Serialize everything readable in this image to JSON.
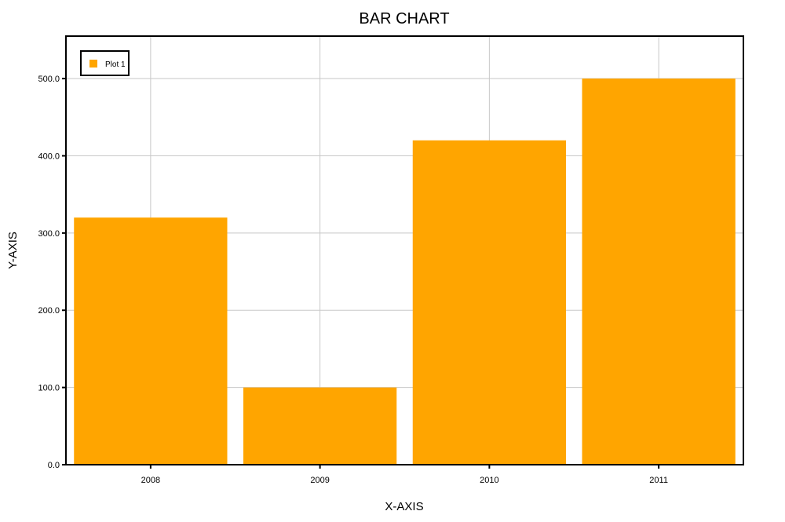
{
  "chart_data": {
    "type": "bar",
    "title": "BAR CHART",
    "xlabel": "X-AXIS",
    "ylabel": "Y-AXIS",
    "categories": [
      "2008",
      "2009",
      "2010",
      "2011"
    ],
    "series": [
      {
        "name": "Plot 1",
        "values": [
          320,
          100,
          420,
          500
        ],
        "color": "#ffa500"
      }
    ],
    "ylim": [
      0,
      555
    ],
    "yticks": [
      0,
      100,
      200,
      300,
      400,
      500
    ],
    "ytick_labels": [
      "0.0",
      "100.0",
      "200.0",
      "300.0",
      "400.0",
      "500.0"
    ],
    "grid": true,
    "legend_position": "top-left",
    "grid_color": "#c8c8c8",
    "frame_color": "#000000"
  }
}
